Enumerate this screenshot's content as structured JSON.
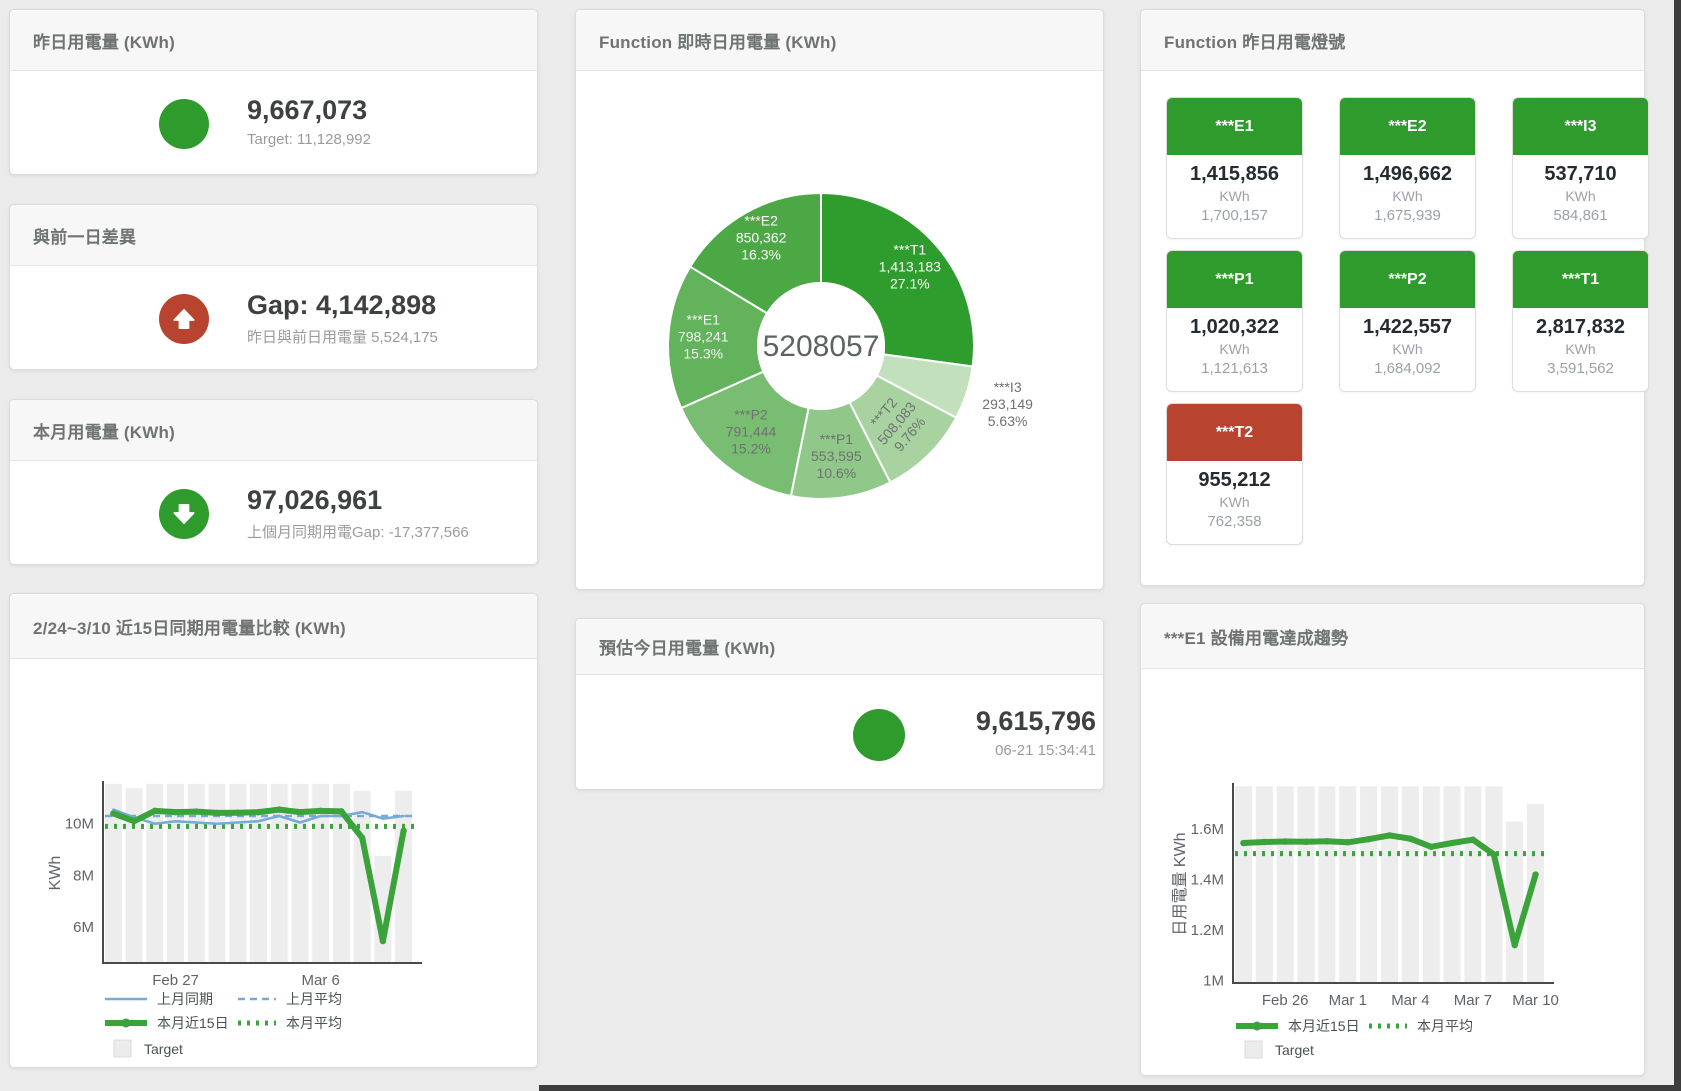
{
  "page": {
    "background": "#ebebeb",
    "accent_green": "#2e9b2c",
    "accent_red": "#b84430"
  },
  "cards": {
    "yesterday": {
      "title": "昨日用電量 (KWh)",
      "value": "9,667,073",
      "subtitle": "Target: 11,128,992",
      "status_color": "#2e9b2c"
    },
    "gap": {
      "title": "與前一日差異",
      "value": "Gap: 4,142,898",
      "subtitle": "昨日與前日用電量 5,524,175",
      "status_color": "#b84430",
      "direction": "up"
    },
    "month": {
      "title": "本月用電量 (KWh)",
      "value": "97,026,961",
      "subtitle": "上個月同期用電Gap: -17,377,566",
      "status_color": "#2e9b2c",
      "direction": "down"
    },
    "estimate": {
      "title": "預估今日用電量 (KWh)",
      "value": "9,615,796",
      "subtitle": "06-21 15:34:41",
      "status_color": "#2e9b2c"
    }
  },
  "lamps": {
    "title": "Function 昨日用電燈號",
    "colors": {
      "green": "#2e9b2c",
      "red": "#b84430"
    },
    "tiles": [
      {
        "label": "***E1",
        "value": "1,415,856",
        "unit": "KWh",
        "target": "1,700,157",
        "status": "green"
      },
      {
        "label": "***E2",
        "value": "1,496,662",
        "unit": "KWh",
        "target": "1,675,939",
        "status": "green"
      },
      {
        "label": "***I3",
        "value": "537,710",
        "unit": "KWh",
        "target": "584,861",
        "status": "green"
      },
      {
        "label": "***P1",
        "value": "1,020,322",
        "unit": "KWh",
        "target": "1,121,613",
        "status": "green"
      },
      {
        "label": "***P2",
        "value": "1,422,557",
        "unit": "KWh",
        "target": "1,684,092",
        "status": "green"
      },
      {
        "label": "***T1",
        "value": "2,817,832",
        "unit": "KWh",
        "target": "3,591,562",
        "status": "green"
      },
      {
        "label": "***T2",
        "value": "955,212",
        "unit": "KWh",
        "target": "762,358",
        "status": "red"
      }
    ]
  },
  "chart_data": [
    {
      "id": "realtime-function-donut",
      "type": "pie",
      "title": "Function 即時日用電量 (KWh)",
      "center_total": "5208057",
      "slices": [
        {
          "label": "***T1",
          "value": 1413183,
          "display": "1,413,183",
          "pct": "27.1%",
          "color": "#2f9c2e",
          "text": "#ffffff",
          "label_r": 118,
          "rot": 0,
          "outside": false
        },
        {
          "label": "***I3",
          "value": 293149,
          "display": "293,149",
          "pct": "5.63%",
          "color": "#c3e0bd",
          "text": "#6d7270",
          "label_r": 196,
          "rot": 0,
          "outside": true
        },
        {
          "label": "***T2",
          "value": 508083,
          "display": "508,083",
          "pct": "9.76%",
          "color": "#a8d3a1",
          "text": "#6d7270",
          "label_r": 110,
          "rot": -50,
          "outside": false
        },
        {
          "label": "***P1",
          "value": 553595,
          "display": "553,595",
          "pct": "10.6%",
          "color": "#90c889",
          "text": "#6d7270",
          "label_r": 113,
          "rot": 0,
          "outside": false
        },
        {
          "label": "***P2",
          "value": 791444,
          "display": "791,444",
          "pct": "15.2%",
          "color": "#79bd72",
          "text": "#6d7270",
          "label_r": 112,
          "rot": 0,
          "outside": false
        },
        {
          "label": "***E1",
          "value": 798241,
          "display": "798,241",
          "pct": "15.3%",
          "color": "#63b25c",
          "text": "#f2f5f1",
          "label_r": 118,
          "rot": 0,
          "outside": false
        },
        {
          "label": "***E2",
          "value": 850362,
          "display": "850,362",
          "pct": "16.3%",
          "color": "#4ca845",
          "text": "#ffffff",
          "label_r": 122,
          "rot": 0,
          "outside": false
        }
      ]
    },
    {
      "id": "compare-15day",
      "type": "line",
      "title": "2/24~3/10 近15日同期用電量比較 (KWh)",
      "ylabel": "KWh",
      "ylim": [
        4.6,
        11.58
      ],
      "yticks": [
        {
          "v": 6,
          "label": "6M"
        },
        {
          "v": 8,
          "label": "8M"
        },
        {
          "v": 10,
          "label": "10M"
        }
      ],
      "xticks": [
        {
          "i": 3,
          "label": "Feb 27"
        },
        {
          "i": 10,
          "label": "Mar 6"
        }
      ],
      "bar_color": "#ededed",
      "target_bars": [
        11.55,
        11.38,
        11.55,
        11.55,
        11.55,
        11.55,
        11.55,
        11.55,
        11.55,
        11.55,
        11.55,
        11.55,
        11.28,
        8.75,
        11.28
      ],
      "series": [
        {
          "name": "上月同期",
          "style": "thin",
          "color": "#74a9d8",
          "values": [
            10.55,
            10.25,
            10.0,
            10.1,
            10.05,
            10.0,
            10.05,
            10.1,
            10.3,
            10.05,
            10.3,
            10.3,
            10.45,
            10.2,
            10.3
          ]
        },
        {
          "name": "上月平均",
          "style": "dashed",
          "color": "#74a9d8",
          "avg": 10.3
        },
        {
          "name": "本月近15日",
          "style": "thick",
          "color": "#3aa33a",
          "values": [
            10.4,
            10.1,
            10.5,
            10.45,
            10.47,
            10.42,
            10.43,
            10.45,
            10.55,
            10.45,
            10.5,
            10.48,
            9.45,
            5.45,
            9.73
          ]
        },
        {
          "name": "本月平均",
          "style": "dotted",
          "color": "#3aa33a",
          "avg": 9.9
        }
      ],
      "legend_target": "Target"
    },
    {
      "id": "e1-trend",
      "type": "line",
      "title": "***E1 設備用電達成趨勢",
      "ylabel": "日用電量 KWh",
      "ylim": [
        0.99,
        1.775
      ],
      "yticks": [
        {
          "v": 1,
          "label": "1M"
        },
        {
          "v": 1.2,
          "label": "1.2M"
        },
        {
          "v": 1.4,
          "label": "1.4M"
        },
        {
          "v": 1.6,
          "label": "1.6M"
        }
      ],
      "xticks": [
        {
          "i": 2,
          "label": "Feb 26"
        },
        {
          "i": 5,
          "label": "Mar 1"
        },
        {
          "i": 8,
          "label": "Mar 4"
        },
        {
          "i": 11,
          "label": "Mar 7"
        },
        {
          "i": 14,
          "label": "Mar 10"
        }
      ],
      "bar_color": "#ededed",
      "target_bars": [
        1.77,
        1.77,
        1.77,
        1.77,
        1.77,
        1.77,
        1.77,
        1.77,
        1.77,
        1.77,
        1.77,
        1.77,
        1.77,
        1.63,
        1.7
      ],
      "series": [
        {
          "name": "本月近15日",
          "style": "thick",
          "color": "#3aa33a",
          "values": [
            1.545,
            1.549,
            1.551,
            1.55,
            1.552,
            1.548,
            1.56,
            1.575,
            1.562,
            1.53,
            1.545,
            1.558,
            1.5,
            1.14,
            1.42
          ]
        },
        {
          "name": "本月平均",
          "style": "dotted",
          "color": "#3aa33a",
          "avg": 1.503
        }
      ],
      "legend_target": "Target"
    }
  ]
}
